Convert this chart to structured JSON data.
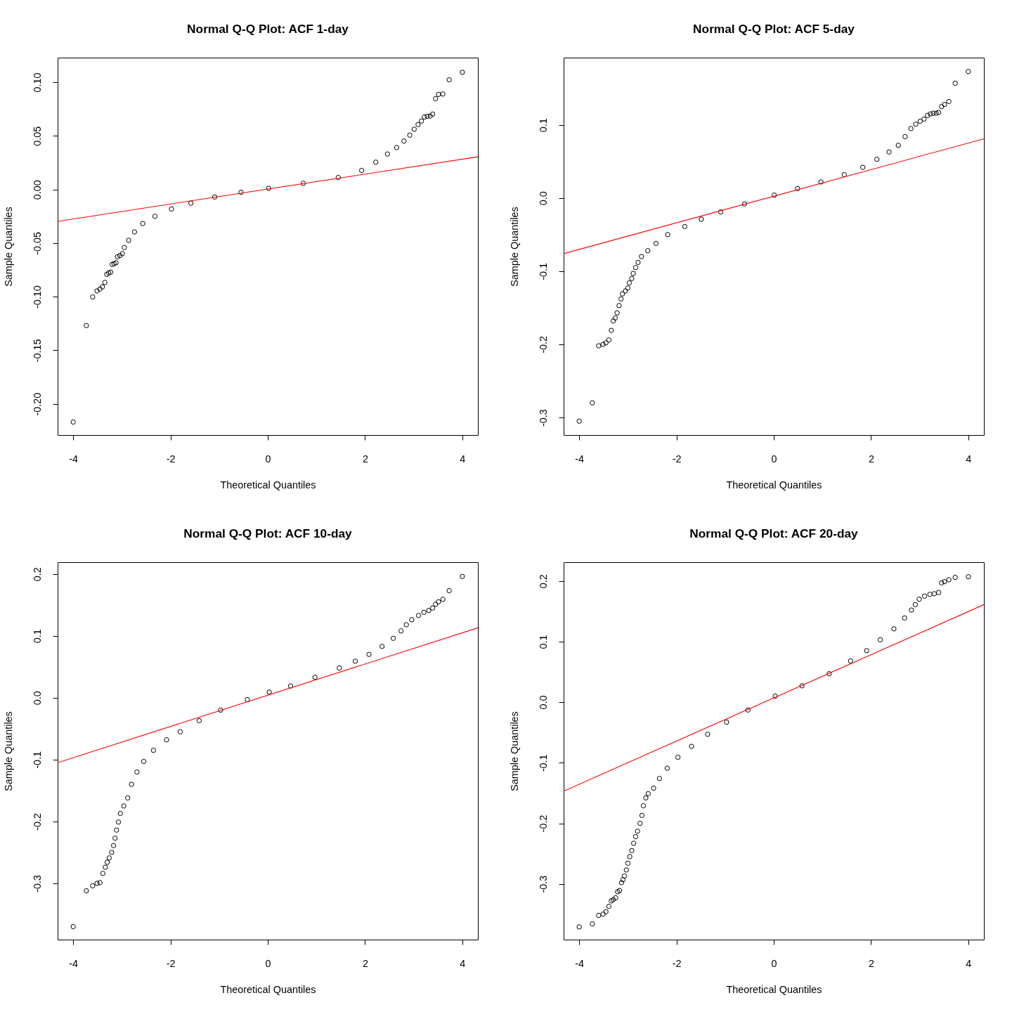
{
  "chart_data": [
    {
      "type": "scatter",
      "title": "Normal Q-Q Plot: ACF 1-day",
      "xlabel": "Theoretical Quantiles",
      "ylabel": "Sample Quantiles",
      "xlim": [
        -4.32,
        4.32
      ],
      "ylim": [
        -0.229,
        0.123
      ],
      "xticks": [
        -4,
        -2,
        0,
        2,
        4
      ],
      "yticks": [
        {
          "value": -0.2,
          "label": "-0.20"
        },
        -0.15,
        {
          "value": -0.1,
          "label": "-0.10"
        },
        -0.05,
        {
          "value": 0,
          "label": "0.00"
        },
        0.05,
        {
          "value": 0.1,
          "label": "0.10"
        }
      ],
      "grid": false,
      "series": [
        {
          "type": "scatter",
          "marker": "circle",
          "color": "#000000",
          "x": [
            -4.0,
            -3.73,
            -3.6,
            -3.51,
            -3.45,
            -3.4,
            -3.35,
            -3.31,
            -3.27,
            -3.23,
            -3.2,
            -3.16,
            -3.12,
            -3.09,
            -3.04,
            -2.99,
            -2.95,
            -2.86,
            -2.74,
            -2.57,
            -2.32,
            -1.98,
            -1.58,
            -1.09,
            -0.55,
            0.02,
            0.73,
            1.45,
            1.93,
            2.22,
            2.46,
            2.65,
            2.8,
            2.92,
            3.01,
            3.09,
            3.16,
            3.22,
            3.28,
            3.34,
            3.39,
            3.45,
            3.51,
            3.6,
            3.73,
            4.0
          ],
          "values": [
            -0.2169,
            -0.1269,
            -0.1002,
            -0.0946,
            -0.0928,
            -0.0908,
            -0.0867,
            -0.0791,
            -0.0778,
            -0.0771,
            -0.0699,
            -0.0692,
            -0.0683,
            -0.0627,
            -0.0616,
            -0.0598,
            -0.0542,
            -0.0474,
            -0.0396,
            -0.0317,
            -0.025,
            -0.0182,
            -0.0127,
            -0.007,
            -0.0026,
            0.0011,
            0.0057,
            0.0112,
            0.0178,
            0.0255,
            0.0331,
            0.0391,
            0.0452,
            0.0507,
            0.0562,
            0.0606,
            0.0639,
            0.0676,
            0.0683,
            0.0685,
            0.0703,
            0.0847,
            0.0887,
            0.0891,
            0.1023,
            0.1093
          ]
        },
        {
          "type": "line",
          "line_style": "solid",
          "color": "#ff0000",
          "x": [
            -4.32,
            4.32
          ],
          "values": [
            -0.0297,
            0.0305
          ]
        }
      ]
    },
    {
      "type": "scatter",
      "title": "Normal Q-Q Plot: ACF 5-day",
      "xlabel": "Theoretical Quantiles",
      "ylabel": "Sample Quantiles",
      "xlim": [
        -4.32,
        4.32
      ],
      "ylim": [
        -0.324,
        0.192
      ],
      "xticks": [
        -4,
        -2,
        0,
        2,
        4
      ],
      "yticks": [
        -0.3,
        -0.2,
        -0.1,
        {
          "value": 0,
          "label": "0.0"
        },
        0.1
      ],
      "grid": false,
      "series": [
        {
          "type": "scatter",
          "marker": "circle",
          "color": "#000000",
          "x": [
            -4.0,
            -3.73,
            -3.6,
            -3.51,
            -3.45,
            -3.39,
            -3.34,
            -3.3,
            -3.26,
            -3.22,
            -3.18,
            -3.14,
            -3.11,
            -3.05,
            -3.0,
            -2.97,
            -2.92,
            -2.89,
            -2.84,
            -2.79,
            -2.72,
            -2.59,
            -2.42,
            -2.18,
            -1.83,
            -1.49,
            -1.09,
            -0.6,
            0.01,
            0.49,
            0.97,
            1.45,
            1.83,
            2.12,
            2.37,
            2.56,
            2.7,
            2.82,
            2.92,
            3.01,
            3.09,
            3.16,
            3.22,
            3.28,
            3.34,
            3.39,
            3.45,
            3.51,
            3.6,
            3.73,
            4.0
          ],
          "values": [
            -0.305,
            -0.28,
            -0.202,
            -0.2,
            -0.198,
            -0.194,
            -0.181,
            -0.168,
            -0.164,
            -0.157,
            -0.147,
            -0.138,
            -0.131,
            -0.127,
            -0.123,
            -0.116,
            -0.11,
            -0.103,
            -0.095,
            -0.088,
            -0.08,
            -0.072,
            -0.062,
            -0.05,
            -0.039,
            -0.029,
            -0.019,
            -0.008,
            0.004,
            0.013,
            0.022,
            0.032,
            0.042,
            0.053,
            0.063,
            0.072,
            0.084,
            0.095,
            0.101,
            0.105,
            0.108,
            0.113,
            0.115,
            0.116,
            0.116,
            0.117,
            0.125,
            0.128,
            0.132,
            0.157,
            0.173
          ]
        },
        {
          "type": "line",
          "line_style": "solid",
          "color": "#ff0000",
          "x": [
            -4.32,
            4.32
          ],
          "values": [
            -0.076,
            0.081
          ]
        }
      ]
    },
    {
      "type": "scatter",
      "title": "Normal Q-Q Plot: ACF 10-day",
      "xlabel": "Theoretical Quantiles",
      "ylabel": "Sample Quantiles",
      "xlim": [
        -4.32,
        4.32
      ],
      "ylim": [
        -0.391,
        0.219
      ],
      "xticks": [
        -4,
        -2,
        0,
        2,
        4
      ],
      "yticks": [
        -0.3,
        -0.2,
        -0.1,
        {
          "value": 0,
          "label": "0.0"
        },
        0.1,
        0.2
      ],
      "grid": false,
      "series": [
        {
          "type": "scatter",
          "marker": "circle",
          "color": "#000000",
          "x": [
            -4.0,
            -3.73,
            -3.6,
            -3.51,
            -3.45,
            -3.39,
            -3.34,
            -3.3,
            -3.26,
            -3.21,
            -3.17,
            -3.14,
            -3.11,
            -3.07,
            -3.03,
            -2.96,
            -2.88,
            -2.8,
            -2.69,
            -2.55,
            -2.35,
            -2.08,
            -1.8,
            -1.41,
            -0.97,
            -0.42,
            0.03,
            0.47,
            0.97,
            1.47,
            1.8,
            2.08,
            2.35,
            2.58,
            2.74,
            2.85,
            2.96,
            3.1,
            3.21,
            3.31,
            3.39,
            3.45,
            3.51,
            3.6,
            3.73,
            4.0
          ],
          "values": [
            -0.37,
            -0.312,
            -0.304,
            -0.3,
            -0.299,
            -0.284,
            -0.274,
            -0.266,
            -0.259,
            -0.25,
            -0.239,
            -0.227,
            -0.214,
            -0.201,
            -0.187,
            -0.175,
            -0.162,
            -0.14,
            -0.12,
            -0.103,
            -0.085,
            -0.068,
            -0.055,
            -0.037,
            -0.02,
            -0.003,
            0.009,
            0.019,
            0.033,
            0.048,
            0.059,
            0.07,
            0.083,
            0.096,
            0.108,
            0.118,
            0.126,
            0.133,
            0.138,
            0.141,
            0.145,
            0.151,
            0.155,
            0.159,
            0.173,
            0.196
          ]
        },
        {
          "type": "line",
          "line_style": "solid",
          "color": "#ff0000",
          "x": [
            -4.32,
            4.32
          ],
          "values": [
            -0.105,
            0.113
          ]
        }
      ]
    },
    {
      "type": "scatter",
      "title": "Normal Q-Q Plot: ACF 20-day",
      "xlabel": "Theoretical Quantiles",
      "ylabel": "Sample Quantiles",
      "xlim": [
        -4.32,
        4.32
      ],
      "ylim": [
        -0.392,
        0.231
      ],
      "xticks": [
        -4,
        -2,
        0,
        2,
        4
      ],
      "yticks": [
        -0.3,
        -0.2,
        -0.1,
        {
          "value": 0,
          "label": "0.0"
        },
        0.1,
        0.2
      ],
      "grid": false,
      "series": [
        {
          "type": "scatter",
          "marker": "circle",
          "color": "#000000",
          "x": [
            -4.0,
            -3.73,
            -3.6,
            -3.51,
            -3.45,
            -3.39,
            -3.34,
            -3.3,
            -3.25,
            -3.21,
            -3.17,
            -3.13,
            -3.1,
            -3.07,
            -3.03,
            -3.0,
            -2.96,
            -2.92,
            -2.88,
            -2.84,
            -2.8,
            -2.75,
            -2.71,
            -2.68,
            -2.63,
            -2.58,
            -2.47,
            -2.35,
            -2.19,
            -1.97,
            -1.69,
            -1.36,
            -0.97,
            -0.53,
            0.03,
            0.58,
            1.14,
            1.58,
            1.91,
            2.19,
            2.47,
            2.69,
            2.83,
            2.91,
            2.99,
            3.1,
            3.21,
            3.3,
            3.39,
            3.45,
            3.51,
            3.6,
            3.73,
            4.0
          ],
          "values": [
            -0.371,
            -0.366,
            -0.352,
            -0.35,
            -0.346,
            -0.337,
            -0.328,
            -0.326,
            -0.323,
            -0.313,
            -0.311,
            -0.298,
            -0.293,
            -0.287,
            -0.277,
            -0.266,
            -0.255,
            -0.245,
            -0.233,
            -0.222,
            -0.213,
            -0.2,
            -0.187,
            -0.171,
            -0.158,
            -0.151,
            -0.142,
            -0.126,
            -0.109,
            -0.091,
            -0.073,
            -0.053,
            -0.033,
            -0.013,
            0.01,
            0.027,
            0.047,
            0.068,
            0.085,
            0.103,
            0.121,
            0.139,
            0.152,
            0.161,
            0.17,
            0.175,
            0.178,
            0.179,
            0.181,
            0.197,
            0.199,
            0.202,
            0.206,
            0.207
          ]
        },
        {
          "type": "line",
          "line_style": "solid",
          "color": "#ff0000",
          "x": [
            -4.32,
            4.32
          ],
          "values": [
            -0.147,
            0.161
          ]
        }
      ]
    }
  ]
}
